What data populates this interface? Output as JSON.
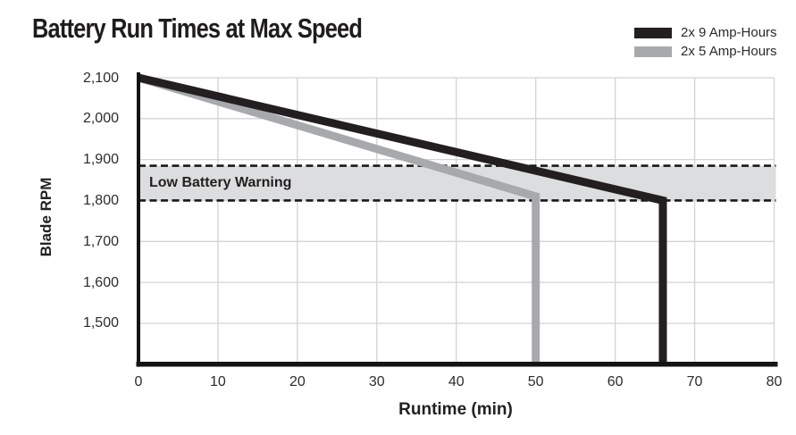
{
  "title": "Battery Run Times at Max Speed",
  "chart_data": {
    "type": "line",
    "title": "Battery Run Times at Max Speed",
    "xlabel": "Runtime (min)",
    "ylabel": "Blade RPM",
    "xlim": [
      0,
      80
    ],
    "ylim": [
      1400,
      2100
    ],
    "grid": true,
    "legend_position": "top-right",
    "x_ticks": [
      0,
      10,
      20,
      30,
      40,
      50,
      60,
      70,
      80
    ],
    "x_tick_labels": [
      "0",
      "10",
      "20",
      "30",
      "40",
      "50",
      "60",
      "70",
      "80"
    ],
    "y_ticks": [
      1500,
      1600,
      1700,
      1800,
      1900,
      2000,
      2100
    ],
    "y_tick_labels": [
      "1,500",
      "1,600",
      "1,700",
      "1,800",
      "1,900",
      "2,000",
      "2,100"
    ],
    "series": [
      {
        "name": "2x 9 Amp-Hours",
        "color": "#231f20",
        "width": 9,
        "points": [
          [
            0,
            2100
          ],
          [
            66,
            1800
          ],
          [
            66,
            1400
          ]
        ]
      },
      {
        "name": "2x 5 Amp-Hours",
        "color": "#a7a9ac",
        "width": 9,
        "points": [
          [
            0,
            2100
          ],
          [
            50,
            1810
          ],
          [
            50,
            1400
          ]
        ]
      }
    ],
    "annotation_band": {
      "label": "Low Battery Warning",
      "y_from": 1800,
      "y_to": 1885,
      "fill": "#dcddde",
      "border_color": "#1a1718",
      "border_style": "dashed"
    },
    "colors": {
      "gridline": "#d2d3d5",
      "axis": "#161314",
      "text": "#231f20"
    }
  }
}
